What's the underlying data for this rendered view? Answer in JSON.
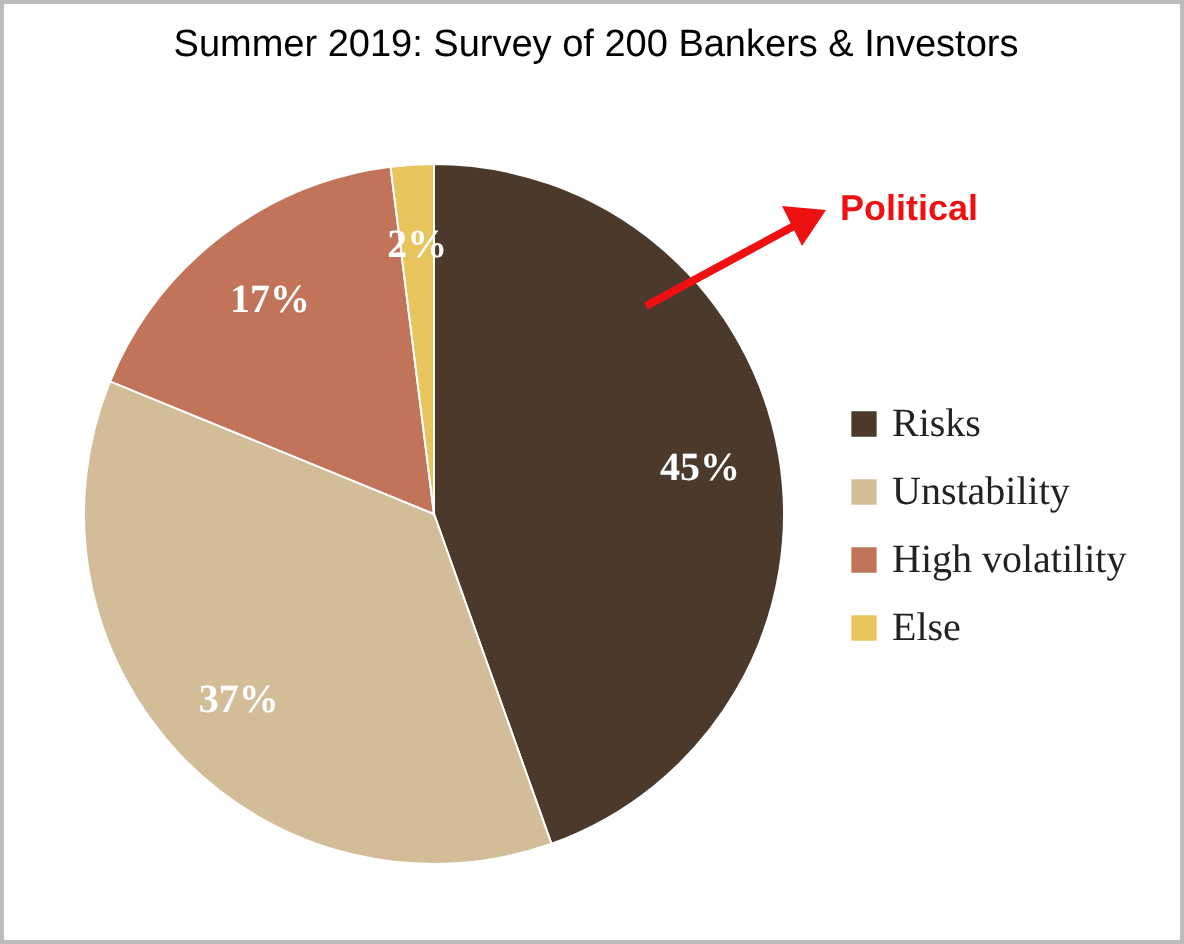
{
  "chart_data": {
    "type": "pie",
    "title": "Summer 2019: Survey of 200 Bankers & Investors",
    "categories": [
      "Risks",
      "Unstability",
      "High volatility",
      "Else"
    ],
    "values": [
      45,
      37,
      17,
      2
    ],
    "colors": [
      "#4b3a2c",
      "#d3bd99",
      "#c2745a",
      "#e8c45c"
    ],
    "value_labels": [
      "45%",
      "37%",
      "17%",
      "2%"
    ],
    "legend": "right",
    "annotations": [
      "Political"
    ]
  }
}
